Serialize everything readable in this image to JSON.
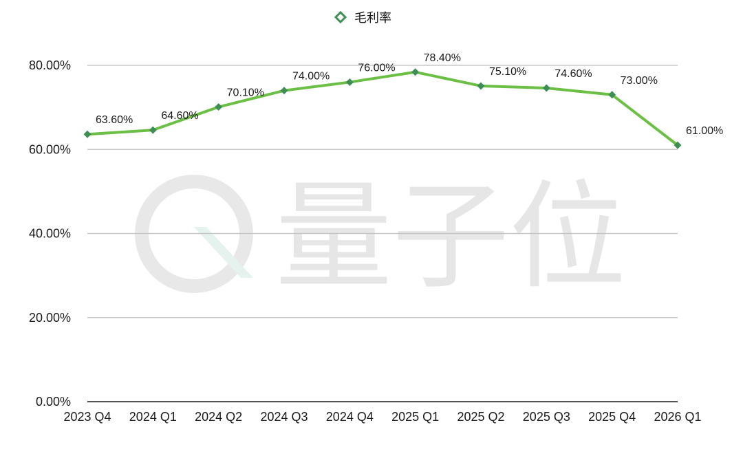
{
  "chart_data": {
    "type": "line",
    "categories": [
      "2023 Q4",
      "2024 Q1",
      "2024 Q2",
      "2024 Q3",
      "2024 Q4",
      "2025 Q1",
      "2025 Q2",
      "2025 Q3",
      "2025 Q4",
      "2026 Q1"
    ],
    "series": [
      {
        "name": "毛利率",
        "values": [
          63.6,
          64.6,
          70.1,
          74.0,
          76.0,
          78.4,
          75.1,
          74.6,
          73.0,
          61.0
        ],
        "data_labels": [
          "63.60%",
          "64.60%",
          "70.10%",
          "74.00%",
          "76.00%",
          "78.40%",
          "75.10%",
          "74.60%",
          "73.00%",
          "61.00%"
        ],
        "line_color": "#6cbf45",
        "marker_color": "#3e8e55"
      }
    ],
    "y_ticks": [
      0,
      20,
      40,
      60,
      80
    ],
    "y_tick_labels": [
      "0.00%",
      "20.00%",
      "40.00%",
      "60.00%",
      "80.00%"
    ],
    "ylim": [
      0,
      80
    ],
    "grid": true,
    "legend_position": "top-center"
  },
  "watermark": {
    "text": "量子位"
  }
}
